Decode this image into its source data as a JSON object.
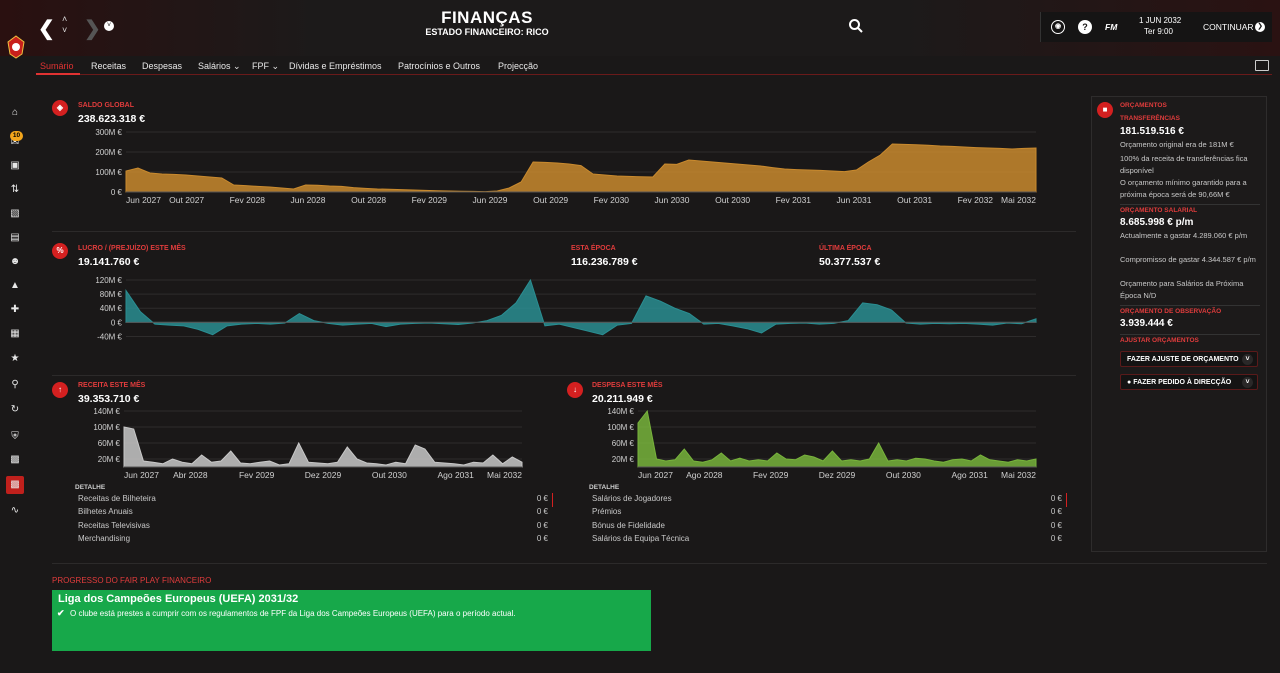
{
  "header": {
    "title": "FINANÇAS",
    "subtitle": "ESTADO FINANCEIRO: RICO",
    "date": "1 JUN 2032",
    "day_time": "Ter 9:00",
    "continue_label": "CONTINUAR",
    "fm_label": "FM",
    "help_label": "?"
  },
  "tabs": [
    {
      "label": "Sumário",
      "active": true
    },
    {
      "label": "Receitas"
    },
    {
      "label": "Despesas"
    },
    {
      "label": "Salários ⌄"
    },
    {
      "label": "FPF ⌄"
    },
    {
      "label": "Dívidas e Empréstimos"
    },
    {
      "label": "Patrocínios e Outros"
    },
    {
      "label": "Projecção"
    }
  ],
  "sidebar": {
    "badge": "10",
    "icons": [
      "home-icon",
      "inbox-icon",
      "squad-icon",
      "tactics-icon",
      "dynamics-icon",
      "reports-icon",
      "staff-icon",
      "training-icon",
      "medical-icon",
      "schedule-icon",
      "competitions-icon",
      "scouting-icon",
      "transfers-icon",
      "club-info-icon",
      "club-vision-icon",
      "finances-icon",
      "dev-centre-icon"
    ]
  },
  "colors": {
    "accent": "#e03232",
    "saldo_fill": "#c98a2e",
    "lucro_fill": "#2a8e92",
    "receita_fill": "#c8c8c8",
    "despesa_fill": "#78b43c",
    "ffp_green": "#17a84a"
  },
  "saldo": {
    "label": "SALDO GLOBAL",
    "value": "238.623.318 €"
  },
  "lucro": {
    "label": "LUCRO / (PREJUÍZO) ESTE MÊS",
    "value": "19.141.760 €",
    "season_label": "ESTA ÉPOCA",
    "season_value": "116.236.789 €",
    "last_label": "ÚLTIMA ÉPOCA",
    "last_value": "50.377.537 €"
  },
  "receita": {
    "label": "RECEITA ESTE MÊS",
    "value": "39.353.710 €",
    "detail_title": "DETALHE",
    "rows": [
      {
        "name": "Receitas de Bilheteira",
        "value": "0 €"
      },
      {
        "name": "Bilhetes Anuais",
        "value": "0 €"
      },
      {
        "name": "Receitas Televisivas",
        "value": "0 €"
      },
      {
        "name": "Merchandising",
        "value": "0 €"
      }
    ]
  },
  "despesa": {
    "label": "DESPESA ESTE MÊS",
    "value": "20.211.949 €",
    "detail_title": "DETALHE",
    "rows": [
      {
        "name": "Salários de Jogadores",
        "value": "0 €"
      },
      {
        "name": "Prémios",
        "value": "0 €"
      },
      {
        "name": "Bónus de Fidelidade",
        "value": "0 €"
      },
      {
        "name": "Salários da Equipa Técnica",
        "value": "0 €"
      }
    ]
  },
  "budgets": {
    "title": "ORÇAMENTOS",
    "transfer_label": "TRANSFERÊNCIAS",
    "transfer_value": "181.519.516 €",
    "transfer_note1": "Orçamento original era de 181M €",
    "transfer_note2": "100% da receita de transferências fica disponível",
    "transfer_note3": "O orçamento mínimo garantido para a próxima época será de 90,66M €",
    "wage_label": "ORÇAMENTO SALARIAL",
    "wage_value": "8.685.998 € p/m",
    "wage_note1": "Actualmente a gastar 4.289.060 € p/m",
    "wage_note2": "Compromisso de gastar 4.344.587 € p/m",
    "wage_note3": "Orçamento para Salários da Próxima Época N/D",
    "scout_label": "ORÇAMENTO DE OBSERVAÇÃO",
    "scout_value": "3.939.444 €",
    "adjust_label": "AJUSTAR ORÇAMENTOS",
    "btn_adjust": "FAZER AJUSTE DE ORÇAMENTO",
    "btn_request": "FAZER PEDIDO À DIRECÇÃO"
  },
  "ffp": {
    "label": "PROGRESSO DO FAIR PLAY FINANCEIRO",
    "title": "Liga dos Campeões Europeus (UEFA) 2031/32",
    "text": "O clube está prestes a cumprir com os regulamentos de FPF da Liga dos Campeões Europeus (UEFA) para o período actual."
  },
  "chart_data": [
    {
      "type": "area",
      "title": "SALDO GLOBAL",
      "unit": "M €",
      "ylim": [
        0,
        300
      ],
      "yticks": [
        0,
        100,
        200,
        300
      ],
      "ytick_labels": [
        "0 €",
        "100M €",
        "200M €",
        "300M €"
      ],
      "xtick_labels": [
        "Jun 2027",
        "Out 2027",
        "Fev 2028",
        "Jun 2028",
        "Out 2028",
        "Fev 2029",
        "Jun 2029",
        "Out 2029",
        "Fev 2030",
        "Jun 2030",
        "Out 2030",
        "Fev 2031",
        "Jun 2031",
        "Out 2031",
        "Fev 2032",
        "Mai 2032"
      ],
      "values": [
        105,
        120,
        95,
        90,
        88,
        85,
        80,
        75,
        70,
        35,
        32,
        28,
        25,
        20,
        15,
        35,
        34,
        30,
        28,
        22,
        18,
        15,
        14,
        12,
        10,
        8,
        6,
        5,
        4,
        3,
        2,
        5,
        20,
        50,
        150,
        148,
        145,
        140,
        132,
        90,
        85,
        80,
        78,
        76,
        75,
        140,
        138,
        160,
        155,
        150,
        145,
        140,
        135,
        130,
        122,
        115,
        112,
        110,
        108,
        105,
        102,
        110,
        150,
        185,
        240,
        238,
        236,
        234,
        230,
        228,
        225,
        222,
        220,
        218,
        215,
        218,
        220
      ]
    },
    {
      "type": "area",
      "title": "LUCRO / (PREJUÍZO) ESTE MÊS",
      "unit": "M €",
      "ylim": [
        -50,
        120
      ],
      "yticks": [
        -40,
        0,
        40,
        80,
        120
      ],
      "ytick_labels": [
        "-40M €",
        "0 €",
        "40M €",
        "80M €",
        "120M €"
      ],
      "xtick_labels": [
        "Jun 2027",
        "Out 2027",
        "Fev 2028",
        "Jun 2028",
        "Out 2028",
        "Fev 2029",
        "Jun 2029",
        "Out 2029",
        "Fev 2030",
        "Jun 2030",
        "Out 2030",
        "Fev 2031",
        "Jun 2031",
        "Out 2031",
        "Fev 2032",
        "Mai 2032"
      ],
      "values": [
        90,
        30,
        -5,
        -8,
        -10,
        -20,
        -35,
        -10,
        -5,
        -3,
        -5,
        -2,
        25,
        5,
        -3,
        -8,
        -5,
        -3,
        -12,
        -5,
        -3,
        -2,
        -4,
        -6,
        -2,
        5,
        20,
        55,
        120,
        -10,
        -5,
        -15,
        -25,
        -35,
        -8,
        -3,
        75,
        60,
        40,
        25,
        -5,
        -3,
        -10,
        -18,
        -30,
        -5,
        -3,
        -2,
        -5,
        -3,
        5,
        55,
        50,
        35,
        -2,
        -5,
        -3,
        -4,
        -3,
        -5,
        -8,
        -2,
        -4,
        10
      ]
    },
    {
      "type": "area",
      "title": "RECEITA ESTE MÊS",
      "unit": "M €",
      "ylim": [
        0,
        140
      ],
      "yticks": [
        20,
        60,
        100,
        140
      ],
      "ytick_labels": [
        "20M €",
        "60M €",
        "100M €",
        "140M €"
      ],
      "xtick_labels": [
        "Jun 2027",
        "Abr 2028",
        "Fev 2029",
        "Dez 2029",
        "Out 2030",
        "Ago 2031",
        "Mai 2032"
      ],
      "values": [
        100,
        95,
        15,
        12,
        8,
        20,
        12,
        8,
        30,
        12,
        15,
        40,
        10,
        8,
        12,
        15,
        5,
        8,
        60,
        12,
        10,
        8,
        12,
        50,
        20,
        10,
        8,
        5,
        12,
        8,
        55,
        45,
        12,
        10,
        8,
        5,
        12,
        10,
        30,
        8,
        25,
        12
      ]
    },
    {
      "type": "area",
      "title": "DESPESA ESTE MÊS",
      "unit": "M €",
      "ylim": [
        0,
        140
      ],
      "yticks": [
        20,
        60,
        100,
        140
      ],
      "ytick_labels": [
        "20M €",
        "60M €",
        "100M €",
        "140M €"
      ],
      "xtick_labels": [
        "Jun 2027",
        "Ago 2028",
        "Fev 2029",
        "Dez 2029",
        "Out 2030",
        "Ago 2031",
        "Mai 2032"
      ],
      "values": [
        110,
        140,
        20,
        15,
        18,
        45,
        15,
        12,
        18,
        35,
        15,
        22,
        15,
        18,
        15,
        35,
        20,
        18,
        30,
        25,
        15,
        40,
        15,
        18,
        15,
        20,
        60,
        15,
        18,
        15,
        22,
        20,
        15,
        12,
        18,
        20,
        15,
        30,
        18,
        15,
        12,
        18,
        15,
        20
      ]
    }
  ]
}
